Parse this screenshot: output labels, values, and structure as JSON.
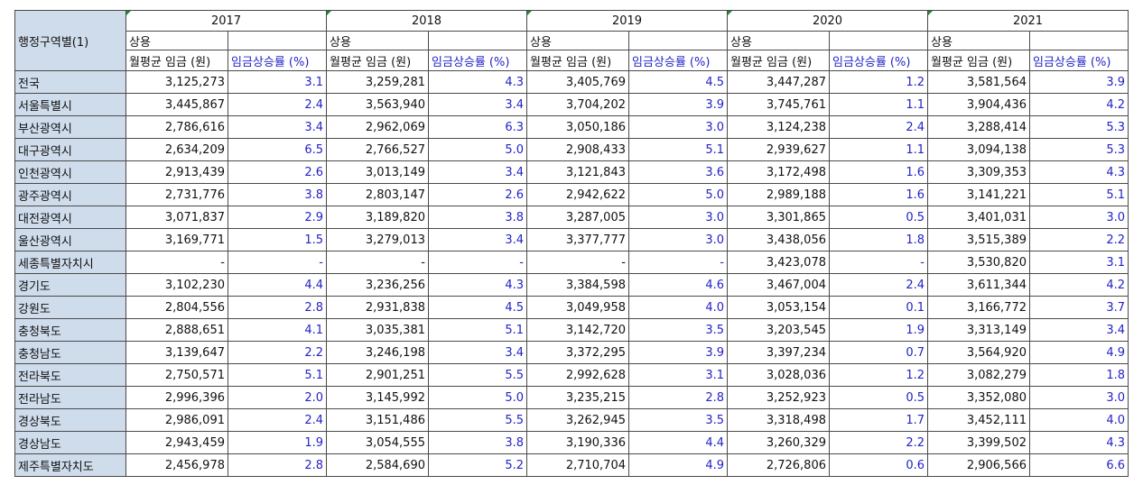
{
  "header": {
    "region_label": "행정구역별(1)",
    "years": [
      "2017",
      "2018",
      "2019",
      "2020",
      "2021"
    ],
    "category_label": "상용",
    "wage_label": "월평균 임금 (원)",
    "rate_label": "임금상승률 (%)"
  },
  "rows": [
    {
      "region": "전국",
      "cells": [
        [
          "3,125,273",
          "3.1"
        ],
        [
          "3,259,281",
          "4.3"
        ],
        [
          "3,405,769",
          "4.5"
        ],
        [
          "3,447,287",
          "1.2"
        ],
        [
          "3,581,564",
          "3.9"
        ]
      ]
    },
    {
      "region": "서울특별시",
      "cells": [
        [
          "3,445,867",
          "2.4"
        ],
        [
          "3,563,940",
          "3.4"
        ],
        [
          "3,704,202",
          "3.9"
        ],
        [
          "3,745,761",
          "1.1"
        ],
        [
          "3,904,436",
          "4.2"
        ]
      ]
    },
    {
      "region": "부산광역시",
      "cells": [
        [
          "2,786,616",
          "3.4"
        ],
        [
          "2,962,069",
          "6.3"
        ],
        [
          "3,050,186",
          "3.0"
        ],
        [
          "3,124,238",
          "2.4"
        ],
        [
          "3,288,414",
          "5.3"
        ]
      ]
    },
    {
      "region": "대구광역시",
      "cells": [
        [
          "2,634,209",
          "6.5"
        ],
        [
          "2,766,527",
          "5.0"
        ],
        [
          "2,908,433",
          "5.1"
        ],
        [
          "2,939,627",
          "1.1"
        ],
        [
          "3,094,138",
          "5.3"
        ]
      ]
    },
    {
      "region": "인천광역시",
      "cells": [
        [
          "2,913,439",
          "2.6"
        ],
        [
          "3,013,149",
          "3.4"
        ],
        [
          "3,121,843",
          "3.6"
        ],
        [
          "3,172,498",
          "1.6"
        ],
        [
          "3,309,353",
          "4.3"
        ]
      ]
    },
    {
      "region": "광주광역시",
      "cells": [
        [
          "2,731,776",
          "3.8"
        ],
        [
          "2,803,147",
          "2.6"
        ],
        [
          "2,942,622",
          "5.0"
        ],
        [
          "2,989,188",
          "1.6"
        ],
        [
          "3,141,221",
          "5.1"
        ]
      ]
    },
    {
      "region": "대전광역시",
      "cells": [
        [
          "3,071,837",
          "2.9"
        ],
        [
          "3,189,820",
          "3.8"
        ],
        [
          "3,287,005",
          "3.0"
        ],
        [
          "3,301,865",
          "0.5"
        ],
        [
          "3,401,031",
          "3.0"
        ]
      ]
    },
    {
      "region": "울산광역시",
      "cells": [
        [
          "3,169,771",
          "1.5"
        ],
        [
          "3,279,013",
          "3.4"
        ],
        [
          "3,377,777",
          "3.0"
        ],
        [
          "3,438,056",
          "1.8"
        ],
        [
          "3,515,389",
          "2.2"
        ]
      ]
    },
    {
      "region": "세종특별자치시",
      "cells": [
        [
          "-",
          "-"
        ],
        [
          "-",
          "-"
        ],
        [
          "-",
          "-"
        ],
        [
          "3,423,078",
          "-"
        ],
        [
          "3,530,820",
          "3.1"
        ]
      ]
    },
    {
      "region": "경기도",
      "cells": [
        [
          "3,102,230",
          "4.4"
        ],
        [
          "3,236,256",
          "4.3"
        ],
        [
          "3,384,598",
          "4.6"
        ],
        [
          "3,467,004",
          "2.4"
        ],
        [
          "3,611,344",
          "4.2"
        ]
      ]
    },
    {
      "region": "강원도",
      "cells": [
        [
          "2,804,556",
          "2.8"
        ],
        [
          "2,931,838",
          "4.5"
        ],
        [
          "3,049,958",
          "4.0"
        ],
        [
          "3,053,154",
          "0.1"
        ],
        [
          "3,166,772",
          "3.7"
        ]
      ]
    },
    {
      "region": "충청북도",
      "cells": [
        [
          "2,888,651",
          "4.1"
        ],
        [
          "3,035,381",
          "5.1"
        ],
        [
          "3,142,720",
          "3.5"
        ],
        [
          "3,203,545",
          "1.9"
        ],
        [
          "3,313,149",
          "3.4"
        ]
      ]
    },
    {
      "region": "충청남도",
      "cells": [
        [
          "3,139,647",
          "2.2"
        ],
        [
          "3,246,198",
          "3.4"
        ],
        [
          "3,372,295",
          "3.9"
        ],
        [
          "3,397,234",
          "0.7"
        ],
        [
          "3,564,920",
          "4.9"
        ]
      ]
    },
    {
      "region": "전라북도",
      "cells": [
        [
          "2,750,571",
          "5.1"
        ],
        [
          "2,901,251",
          "5.5"
        ],
        [
          "2,992,628",
          "3.1"
        ],
        [
          "3,028,036",
          "1.2"
        ],
        [
          "3,082,279",
          "1.8"
        ]
      ]
    },
    {
      "region": "전라남도",
      "cells": [
        [
          "2,996,396",
          "2.0"
        ],
        [
          "3,145,992",
          "5.0"
        ],
        [
          "3,235,215",
          "2.8"
        ],
        [
          "3,252,923",
          "0.5"
        ],
        [
          "3,352,080",
          "3.0"
        ]
      ]
    },
    {
      "region": "경상북도",
      "cells": [
        [
          "2,986,091",
          "2.4"
        ],
        [
          "3,151,486",
          "5.5"
        ],
        [
          "3,262,945",
          "3.5"
        ],
        [
          "3,318,498",
          "1.7"
        ],
        [
          "3,452,111",
          "4.0"
        ]
      ]
    },
    {
      "region": "경상남도",
      "cells": [
        [
          "2,943,459",
          "1.9"
        ],
        [
          "3,054,555",
          "3.8"
        ],
        [
          "3,190,336",
          "4.4"
        ],
        [
          "3,260,329",
          "2.2"
        ],
        [
          "3,399,502",
          "4.3"
        ]
      ]
    },
    {
      "region": "제주특별자치도",
      "cells": [
        [
          "2,456,978",
          "2.8"
        ],
        [
          "2,584,690",
          "5.2"
        ],
        [
          "2,710,704",
          "4.9"
        ],
        [
          "2,726,806",
          "0.6"
        ],
        [
          "2,906,566",
          "6.6"
        ]
      ]
    }
  ],
  "colors": {
    "region_bg": "#cfdcec",
    "rate_text": "#2323c8",
    "year_marker": "#1e8c2e"
  }
}
